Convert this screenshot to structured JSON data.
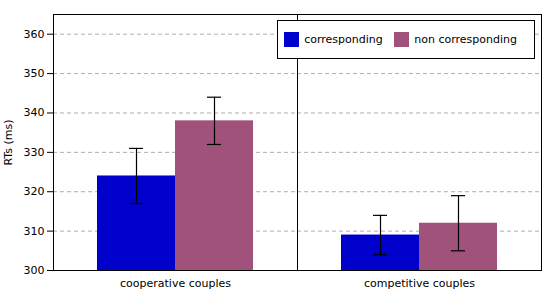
{
  "chart_data": {
    "type": "bar",
    "categories": [
      "cooperative couples",
      "competitive couples"
    ],
    "series": [
      {
        "name": "corresponding",
        "color": "#0000CC",
        "values": [
          324,
          309
        ],
        "errors": [
          7,
          5
        ]
      },
      {
        "name": "non corresponding",
        "color": "#A0527A",
        "values": [
          338,
          312
        ],
        "errors": [
          6,
          7
        ]
      }
    ],
    "ylabel": "RTs (ms)",
    "ylim": [
      300,
      365
    ],
    "yticks": [
      300,
      310,
      320,
      330,
      340,
      350,
      360
    ],
    "grid": true,
    "legend": "upper right"
  }
}
